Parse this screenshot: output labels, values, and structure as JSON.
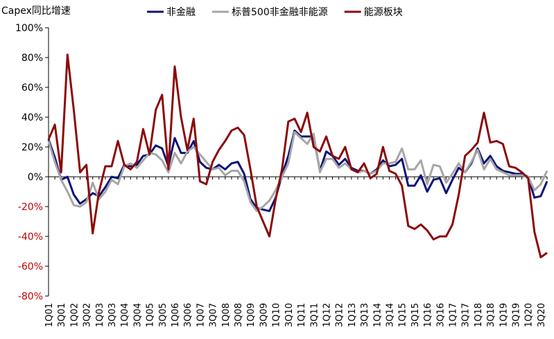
{
  "chart_data": {
    "type": "line",
    "title": "Capex同比增速",
    "categories": [
      "1Q01",
      null,
      "3Q01",
      null,
      "1Q02",
      null,
      "3Q02",
      null,
      "1Q03",
      null,
      "3Q03",
      null,
      "1Q04",
      null,
      "3Q04",
      null,
      "1Q05",
      null,
      "3Q05",
      null,
      "1Q06",
      null,
      "3Q06",
      null,
      "1Q07",
      null,
      "3Q07",
      null,
      "1Q08",
      null,
      "3Q08",
      null,
      "1Q09",
      null,
      "3Q09",
      null,
      "1Q10",
      null,
      "3Q10",
      null,
      "1Q11",
      null,
      "3Q11",
      null,
      "1Q12",
      null,
      "3Q12",
      null,
      "1Q13",
      null,
      "3Q13",
      null,
      "1Q14",
      null,
      "3Q14",
      null,
      "1Q15",
      null,
      "3Q15",
      null,
      "1Q16",
      null,
      "3Q16",
      null,
      "1Q17",
      null,
      "3Q17",
      null,
      "1Q18",
      null,
      "3Q18",
      null,
      "1Q19",
      null,
      "3Q19",
      null,
      "1Q20",
      null,
      "3Q20",
      null
    ],
    "series": [
      {
        "name": "非金融",
        "color": "#0a1478",
        "values": [
          25,
          13,
          -2,
          0,
          -12,
          -18,
          -15,
          -11,
          -13,
          -7,
          0,
          -1,
          8,
          7,
          8,
          14,
          15,
          21,
          19,
          7,
          26,
          16,
          16,
          24,
          10,
          6,
          5,
          8,
          5,
          9,
          10,
          2,
          -15,
          -21,
          -22,
          -23,
          -14,
          1,
          14,
          31,
          27,
          27,
          27,
          4,
          17,
          14,
          8,
          12,
          6,
          4,
          4,
          2,
          5,
          11,
          7,
          8,
          12,
          -6,
          -6,
          1,
          -10,
          -2,
          -1,
          -11,
          -2,
          6,
          3,
          9,
          19,
          9,
          14,
          7,
          4,
          3,
          2,
          2,
          0,
          -14,
          -13,
          -3
        ]
      },
      {
        "name": "标普500非金融非能源",
        "color": "#a6a6a6",
        "values": [
          24,
          10,
          -2,
          -10,
          -19,
          -20,
          -17,
          -4,
          -15,
          -10,
          -2,
          -5,
          7,
          9,
          6,
          11,
          16,
          15,
          11,
          3,
          16,
          9,
          17,
          20,
          15,
          10,
          5,
          6,
          1,
          4,
          4,
          -3,
          -17,
          -23,
          -20,
          -16,
          -9,
          0,
          9,
          30,
          26,
          22,
          29,
          3,
          12,
          12,
          6,
          9,
          5,
          3,
          4,
          2,
          4,
          9,
          9,
          10,
          19,
          5,
          5,
          11,
          -5,
          8,
          7,
          -4,
          2,
          9,
          3,
          10,
          18,
          5,
          12,
          5,
          3,
          1,
          1,
          1,
          0,
          -9,
          -5,
          4
        ]
      },
      {
        "name": "能源板块",
        "color": "#8b0a0a",
        "values": [
          25,
          35,
          3,
          82,
          45,
          3,
          8,
          -38,
          -10,
          7,
          7,
          24,
          8,
          5,
          10,
          32,
          15,
          45,
          55,
          5,
          74,
          40,
          18,
          39,
          -3,
          -5,
          10,
          18,
          24,
          31,
          33,
          28,
          5,
          -20,
          -30,
          -40,
          -15,
          5,
          37,
          39,
          30,
          43,
          20,
          17,
          27,
          14,
          12,
          20,
          5,
          3,
          9,
          -1,
          2,
          20,
          4,
          2,
          -6,
          -33,
          -35,
          -32,
          -36,
          -42,
          -40,
          -40,
          -32,
          -12,
          14,
          18,
          23,
          43,
          23,
          24,
          22,
          7,
          6,
          3,
          -1,
          -37,
          -54,
          -51
        ]
      }
    ],
    "ylim": [
      -80,
      100
    ],
    "yticks": [
      {
        "value": -80,
        "label": "-80%"
      },
      {
        "value": -60,
        "label": "-60%"
      },
      {
        "value": -40,
        "label": "-40%"
      },
      {
        "value": -20,
        "label": "-20%"
      },
      {
        "value": 0,
        "label": "0%"
      },
      {
        "value": 20,
        "label": "20%"
      },
      {
        "value": 40,
        "label": "40%"
      },
      {
        "value": 60,
        "label": "60%"
      },
      {
        "value": 80,
        "label": "80%"
      },
      {
        "value": 100,
        "label": "100%"
      }
    ],
    "negative_label_color": "#c00000",
    "legend": "top"
  }
}
